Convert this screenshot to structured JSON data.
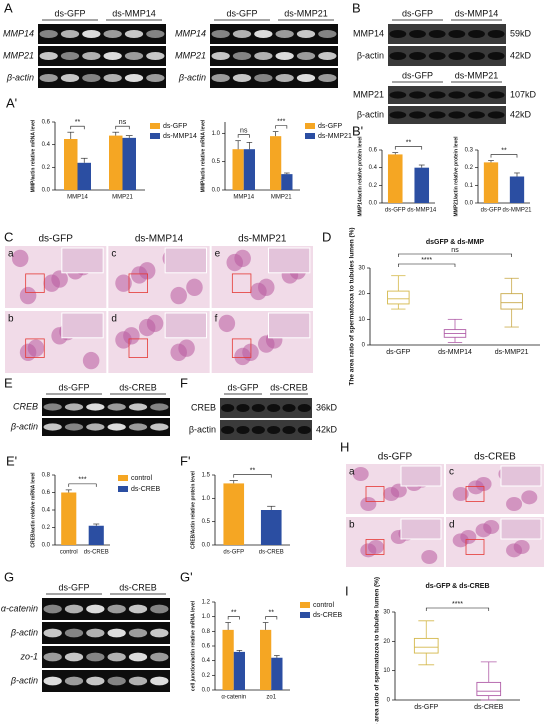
{
  "panel_labels": [
    "A",
    "A'",
    "B",
    "B'",
    "C",
    "D",
    "E",
    "E'",
    "F",
    "F'",
    "G",
    "G'",
    "H",
    "I"
  ],
  "gels": [
    {
      "headers": [
        "ds-GFP",
        "ds-MMP14"
      ],
      "rows": [
        "MMP14",
        "MMP21",
        "β-actin"
      ]
    },
    {
      "headers": [
        "ds-GFP",
        "ds-MMP21"
      ],
      "rows": [
        "MMP14",
        "MMP21",
        "β-actin"
      ]
    },
    {
      "headers": [
        "ds-GFP",
        "ds-MMP14"
      ],
      "rows": [
        "MMP14",
        "β-actin"
      ],
      "sizes": [
        "59kD",
        "42kD"
      ]
    },
    {
      "headers": [
        "ds-GFP",
        "ds-MMP21"
      ],
      "rows": [
        "MMP21",
        "β-actin"
      ],
      "sizes": [
        "107kD",
        "42kD"
      ]
    },
    {
      "headers": [
        "ds-GFP",
        "ds-CREB"
      ],
      "rows": [
        "CREB",
        "β-actin"
      ]
    },
    {
      "headers": [
        "ds-GFP",
        "ds-CREB"
      ],
      "rows": [
        "CREB",
        "β-actin"
      ],
      "sizes": [
        "36kD",
        "42kD"
      ]
    },
    {
      "headers": [
        "ds-GFP",
        "ds-CREB"
      ],
      "rows": [
        "α-catenin",
        "β-actin",
        "zo-1",
        "β-actin"
      ]
    }
  ],
  "histology": [
    {
      "headers": [
        "ds-GFP",
        "ds-MMP14",
        "ds-MMP21"
      ],
      "letters": [
        "a",
        "b",
        "c",
        "d",
        "e",
        "f"
      ]
    },
    {
      "headers": [
        "ds-GFP",
        "ds-CREB"
      ],
      "letters": [
        "a",
        "b",
        "c",
        "d"
      ]
    }
  ],
  "chart_data": [
    {
      "type": "bar",
      "ylabel": "MMP/actin relative mRNA level",
      "categories": [
        "MMP14",
        "MMP21"
      ],
      "series": [
        {
          "name": "ds-GFP",
          "color": "#f5a623",
          "values": [
            0.45,
            0.48
          ],
          "errors": [
            0.06,
            0.03
          ]
        },
        {
          "name": "ds-MMP14",
          "color": "#2b4ea2",
          "values": [
            0.24,
            0.46
          ],
          "errors": [
            0.04,
            0.02
          ]
        }
      ],
      "ylim": [
        0,
        0.6
      ],
      "yticks": [
        {
          "value": 0,
          "label": "0.0"
        },
        0.2,
        0.4,
        0.6
      ],
      "annotations": [
        "**",
        "ns"
      ]
    },
    {
      "type": "bar",
      "ylabel": "MMP/actin relative mRNA level",
      "categories": [
        "MMP14",
        "MMP21"
      ],
      "series": [
        {
          "name": "ds-GFP",
          "color": "#f5a623",
          "values": [
            0.72,
            0.95
          ],
          "errors": [
            0.15,
            0.08
          ]
        },
        {
          "name": "ds-MMP21",
          "color": "#2b4ea2",
          "values": [
            0.72,
            0.28
          ],
          "errors": [
            0.12,
            0.02
          ]
        }
      ],
      "ylim": [
        0,
        1.2
      ],
      "yticks": [
        {
          "value": 0,
          "label": "0.0"
        },
        0.5,
        {
          "value": 1,
          "label": "1.0"
        }
      ],
      "annotations": [
        "ns",
        "***"
      ]
    },
    {
      "type": "bar",
      "ylabel": "MMP14/actin relative protein level",
      "categories": [
        "ds-GFP",
        "ds-MMP14"
      ],
      "values": [
        0.55,
        0.4
      ],
      "errors": [
        0.02,
        0.03
      ],
      "colors": [
        "#f5a623",
        "#2b4ea2"
      ],
      "ylim": [
        0,
        0.6
      ],
      "yticks": [
        {
          "value": 0,
          "label": "0.0"
        },
        0.2,
        0.4,
        0.6
      ],
      "annotations": [
        "**"
      ]
    },
    {
      "type": "bar",
      "ylabel": "MMP21/actin relative protein level",
      "categories": [
        "ds-GFP",
        "ds-MMP21"
      ],
      "values": [
        0.23,
        0.15
      ],
      "errors": [
        0.01,
        0.02
      ],
      "colors": [
        "#f5a623",
        "#2b4ea2"
      ],
      "ylim": [
        0,
        0.3
      ],
      "yticks": [
        {
          "value": 0,
          "label": "0.0"
        },
        0.1,
        0.2,
        0.3
      ],
      "annotations": [
        "**"
      ]
    },
    {
      "type": "box",
      "title": "dsGFP & ds-MMP",
      "ylabel": "The area ratio of spermatozoa to tubules lumen (%)",
      "categories": [
        "ds-GFP",
        "ds-MMP14",
        "ds-MMP21"
      ],
      "colors": [
        "#d4b84a",
        "#b05ea8",
        "#c9a94a"
      ],
      "stats": [
        {
          "min": 14,
          "q1": 16,
          "median": 18,
          "q3": 21,
          "max": 27
        },
        {
          "min": 1,
          "q1": 3,
          "median": 4.5,
          "q3": 6,
          "max": 10
        },
        {
          "min": 7,
          "q1": 14,
          "median": 16.5,
          "q3": 20,
          "max": 26
        }
      ],
      "ylim": [
        0,
        30
      ],
      "yticks": [
        0,
        10,
        20,
        30
      ],
      "annotations": [
        "****",
        "ns"
      ]
    },
    {
      "type": "bar",
      "ylabel": "CREB/actin relative mRNA level",
      "categories": [
        "control",
        "ds-CREB"
      ],
      "values": [
        0.6,
        0.22
      ],
      "errors": [
        0.03,
        0.02
      ],
      "colors": [
        "#f5a623",
        "#2b4ea2"
      ],
      "legend": [
        "control",
        "ds-CREB"
      ],
      "ylim": [
        0,
        0.8
      ],
      "yticks": [
        {
          "value": 0,
          "label": "0.0"
        },
        0.2,
        0.4,
        0.6,
        0.8
      ],
      "annotations": [
        "***"
      ]
    },
    {
      "type": "bar",
      "ylabel": "CREB/Actin relative protein level",
      "categories": [
        "ds-GFP",
        "ds-CREB"
      ],
      "values": [
        1.32,
        0.75
      ],
      "errors": [
        0.06,
        0.08
      ],
      "colors": [
        "#f5a623",
        "#2b4ea2"
      ],
      "ylim": [
        0,
        1.5
      ],
      "yticks": [
        {
          "value": 0,
          "label": "0.0"
        },
        0.5,
        {
          "value": 1,
          "label": "1.0"
        },
        1.5
      ],
      "annotations": [
        "**"
      ]
    },
    {
      "type": "bar",
      "ylabel": "cell junction/actin relative mRNA level",
      "categories": [
        "α-catenin",
        "zo1"
      ],
      "series": [
        {
          "name": "control",
          "color": "#f5a623",
          "values": [
            0.82,
            0.82
          ],
          "errors": [
            0.1,
            0.1
          ]
        },
        {
          "name": "ds-CREB",
          "color": "#2b4ea2",
          "values": [
            0.52,
            0.44
          ],
          "errors": [
            0.02,
            0.03
          ]
        }
      ],
      "ylim": [
        0,
        1.2
      ],
      "yticks": [
        {
          "value": 0,
          "label": "0.0"
        },
        0.2,
        0.4,
        0.6,
        0.8,
        {
          "value": 1,
          "label": "1.0"
        },
        1.2
      ],
      "annotations": [
        "**",
        "**"
      ]
    },
    {
      "type": "box",
      "title": "ds-GFP & ds-CREB",
      "ylabel": "The area ratio of spermatozoa to tubules lumen (%)",
      "categories": [
        "ds-GFP",
        "ds-CREB"
      ],
      "colors": [
        "#d4b84a",
        "#b05ea8"
      ],
      "stats": [
        {
          "min": 12,
          "q1": 16,
          "median": 18,
          "q3": 21,
          "max": 27
        },
        {
          "min": 0,
          "q1": 1.5,
          "median": 3,
          "q3": 6,
          "max": 13
        }
      ],
      "ylim": [
        0,
        30
      ],
      "yticks": [
        0,
        10,
        20,
        30
      ],
      "annotations": [
        "****"
      ]
    }
  ]
}
